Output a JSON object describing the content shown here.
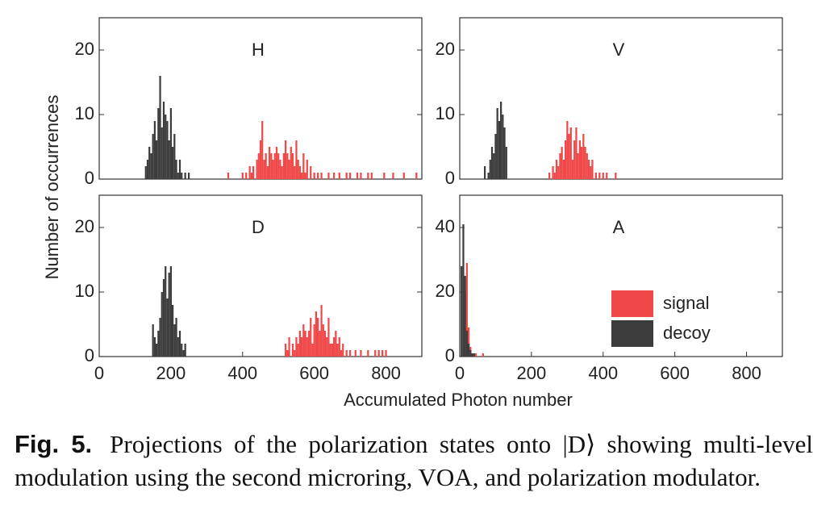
{
  "figure": {
    "xlabel": "Accumulated Photon number",
    "ylabel": "Number of occurrences"
  },
  "chart_data": [
    {
      "type": "bar",
      "title": "H",
      "xlim": [
        0,
        900
      ],
      "ylim": [
        0,
        25
      ],
      "yticks": [
        0,
        10,
        20
      ],
      "series": [
        {
          "color": "#f04848",
          "x": [
            360,
            400,
            410,
            420,
            425,
            430,
            440,
            445,
            450,
            455,
            460,
            465,
            470,
            475,
            480,
            485,
            490,
            495,
            500,
            505,
            510,
            515,
            520,
            525,
            530,
            535,
            540,
            545,
            550,
            555,
            560,
            565,
            570,
            575,
            580,
            590,
            600,
            610,
            620,
            640,
            655,
            670,
            690,
            700,
            720,
            730,
            750,
            760,
            795,
            820,
            850,
            885
          ],
          "values": [
            1,
            1,
            1,
            2,
            1,
            2,
            3,
            4,
            6,
            9,
            3,
            4,
            2,
            5,
            4,
            3,
            4,
            5,
            4,
            3,
            2,
            4,
            6,
            4,
            3,
            5,
            4,
            2,
            6,
            3,
            2,
            1,
            4,
            1,
            3,
            2,
            1,
            1,
            1,
            1,
            1,
            1,
            1,
            1,
            1,
            1,
            1,
            1,
            1,
            1,
            1,
            1
          ]
        },
        {
          "color": "#3c3c3c",
          "x": [
            130,
            135,
            140,
            145,
            150,
            155,
            160,
            165,
            170,
            175,
            180,
            185,
            190,
            195,
            200,
            205,
            210,
            215,
            220,
            225,
            230,
            240,
            250
          ],
          "values": [
            2,
            3,
            5,
            4,
            7,
            9,
            6,
            11,
            16,
            8,
            12,
            10,
            9,
            6,
            11,
            5,
            7,
            3,
            1,
            3,
            1,
            1,
            1
          ]
        }
      ]
    },
    {
      "type": "bar",
      "title": "V",
      "xlim": [
        0,
        900
      ],
      "ylim": [
        0,
        25
      ],
      "yticks": [
        0,
        10,
        20
      ],
      "series": [
        {
          "color": "#f04848",
          "x": [
            250,
            260,
            265,
            270,
            275,
            280,
            285,
            290,
            295,
            300,
            305,
            310,
            315,
            320,
            325,
            330,
            335,
            340,
            345,
            350,
            355,
            360,
            365,
            370,
            380,
            390,
            400,
            410,
            435
          ],
          "values": [
            1,
            2,
            1,
            3,
            2,
            4,
            5,
            3,
            6,
            9,
            7,
            8,
            3,
            6,
            8,
            4,
            6,
            5,
            7,
            5,
            4,
            3,
            2,
            3,
            1,
            1,
            1,
            1,
            1
          ]
        },
        {
          "color": "#3c3c3c",
          "x": [
            70,
            80,
            85,
            90,
            95,
            100,
            105,
            110,
            115,
            120,
            125,
            130
          ],
          "values": [
            2,
            1,
            3,
            5,
            4,
            7,
            11,
            9,
            12,
            10,
            8,
            5
          ]
        }
      ]
    },
    {
      "type": "bar",
      "title": "D",
      "xlim": [
        0,
        900
      ],
      "ylim": [
        0,
        25
      ],
      "yticks": [
        0,
        10,
        20
      ],
      "xticks": [
        0,
        200,
        400,
        600,
        800
      ],
      "series": [
        {
          "color": "#f04848",
          "x": [
            520,
            525,
            530,
            540,
            545,
            550,
            555,
            560,
            565,
            570,
            575,
            580,
            585,
            590,
            595,
            600,
            605,
            610,
            615,
            620,
            625,
            630,
            635,
            640,
            645,
            650,
            655,
            660,
            665,
            670,
            675,
            680,
            690,
            700,
            715,
            730,
            750,
            770,
            780,
            790,
            800
          ],
          "values": [
            2,
            1,
            3,
            2,
            1,
            3,
            2,
            4,
            3,
            5,
            4,
            3,
            4,
            6,
            2,
            5,
            7,
            6,
            4,
            8,
            5,
            4,
            3,
            6,
            2,
            2,
            3,
            4,
            2,
            3,
            1,
            2,
            1,
            1,
            1,
            1,
            1,
            1,
            1,
            1,
            1
          ]
        },
        {
          "color": "#3c3c3c",
          "x": [
            150,
            155,
            160,
            165,
            170,
            175,
            180,
            185,
            190,
            195,
            200,
            205,
            210,
            215,
            220,
            225,
            230,
            235,
            240
          ],
          "values": [
            5,
            3,
            2,
            4,
            6,
            10,
            12,
            14,
            9,
            13,
            14,
            8,
            5,
            6,
            3,
            4,
            2,
            1,
            2
          ]
        }
      ]
    },
    {
      "type": "bar",
      "title": "A",
      "xlim": [
        0,
        900
      ],
      "ylim": [
        0,
        50
      ],
      "yticks": [
        0,
        20,
        40
      ],
      "xticks": [
        0,
        200,
        400,
        600,
        800
      ],
      "legend": "lower right",
      "series": [
        {
          "name": "signal",
          "color": "#f04848",
          "x": [
            10,
            15,
            20,
            25,
            30,
            35,
            45,
            65
          ],
          "values": [
            2,
            20,
            29,
            9,
            3,
            1,
            1,
            1
          ]
        },
        {
          "name": "decoy",
          "color": "#3c3c3c",
          "x": [
            5,
            10,
            15,
            20,
            25,
            30,
            35,
            40
          ],
          "values": [
            28,
            41,
            25,
            8,
            4,
            2,
            1,
            1
          ]
        }
      ]
    }
  ],
  "caption": {
    "label": "Fig. 5.",
    "text": "Projections of the polarization states onto |D⟩ showing multi-level modulation using the second microring, VOA, and polarization modulator."
  }
}
